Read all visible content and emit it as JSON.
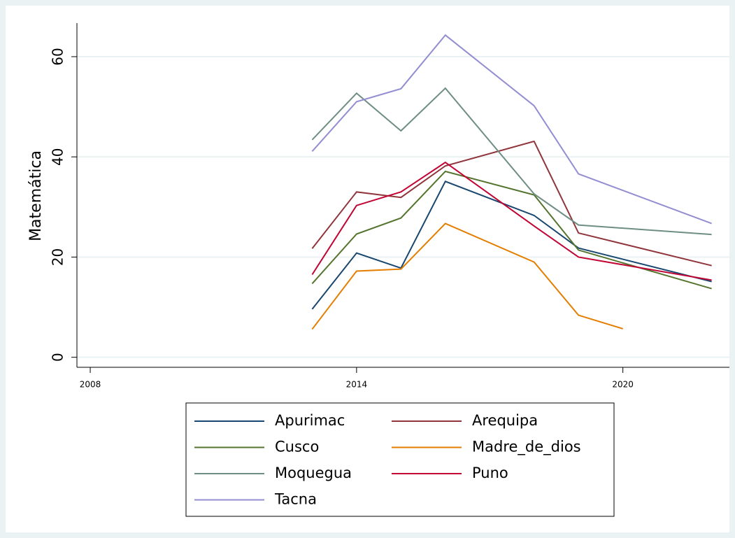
{
  "chart_data": {
    "type": "line",
    "y_label": "Matemática",
    "xlim": [
      2007.7,
      2022.4
    ],
    "xticks": [
      2008,
      2014,
      2020
    ],
    "ylim": [
      -2,
      66.7
    ],
    "yticks": [
      0,
      20,
      40,
      60
    ],
    "grid": true,
    "legend_position": "bottom",
    "series": [
      {
        "name": "Apurimac",
        "color": "#1a476f",
        "x": [
          2013,
          2014,
          2015,
          2016,
          2018,
          2019,
          2022
        ],
        "values": [
          9.6,
          20.8,
          17.8,
          35.1,
          28.3,
          21.8,
          15.1
        ]
      },
      {
        "name": "Arequipa",
        "color": "#90353b",
        "x": [
          2013,
          2014,
          2015,
          2016,
          2018,
          2019,
          2022
        ],
        "values": [
          21.7,
          33,
          31.9,
          38.2,
          43.1,
          24.8,
          18.3
        ]
      },
      {
        "name": "Cusco",
        "color": "#55752f",
        "x": [
          2013,
          2014,
          2015,
          2016,
          2018,
          2019,
          2022
        ],
        "values": [
          14.7,
          24.6,
          27.8,
          37.1,
          32.4,
          21.4,
          13.7
        ]
      },
      {
        "name": "Madre_de_dios",
        "color": "#e37e00",
        "x": [
          2013,
          2014,
          2015,
          2016,
          2018,
          2019,
          2020
        ],
        "values": [
          5.6,
          17.2,
          17.6,
          26.7,
          19,
          8.4,
          5.7
        ]
      },
      {
        "name": "Moquegua",
        "color": "#6e8e84",
        "x": [
          2013,
          2014,
          2015,
          2016,
          2018,
          2019,
          2022
        ],
        "values": [
          43.4,
          52.7,
          45.2,
          53.7,
          32.6,
          26.4,
          24.5
        ]
      },
      {
        "name": "Puno",
        "color": "#c10534",
        "x": [
          2013,
          2014,
          2015,
          2016,
          2018,
          2019,
          2022
        ],
        "values": [
          16.5,
          30.3,
          33,
          38.9,
          26.2,
          20,
          15.4
        ]
      },
      {
        "name": "Tacna",
        "color": "#938dd2",
        "x": [
          2013,
          2014,
          2015,
          2016,
          2018,
          2019,
          2022
        ],
        "values": [
          41.1,
          51,
          53.6,
          64.3,
          50.2,
          36.6,
          26.7
        ]
      }
    ]
  }
}
